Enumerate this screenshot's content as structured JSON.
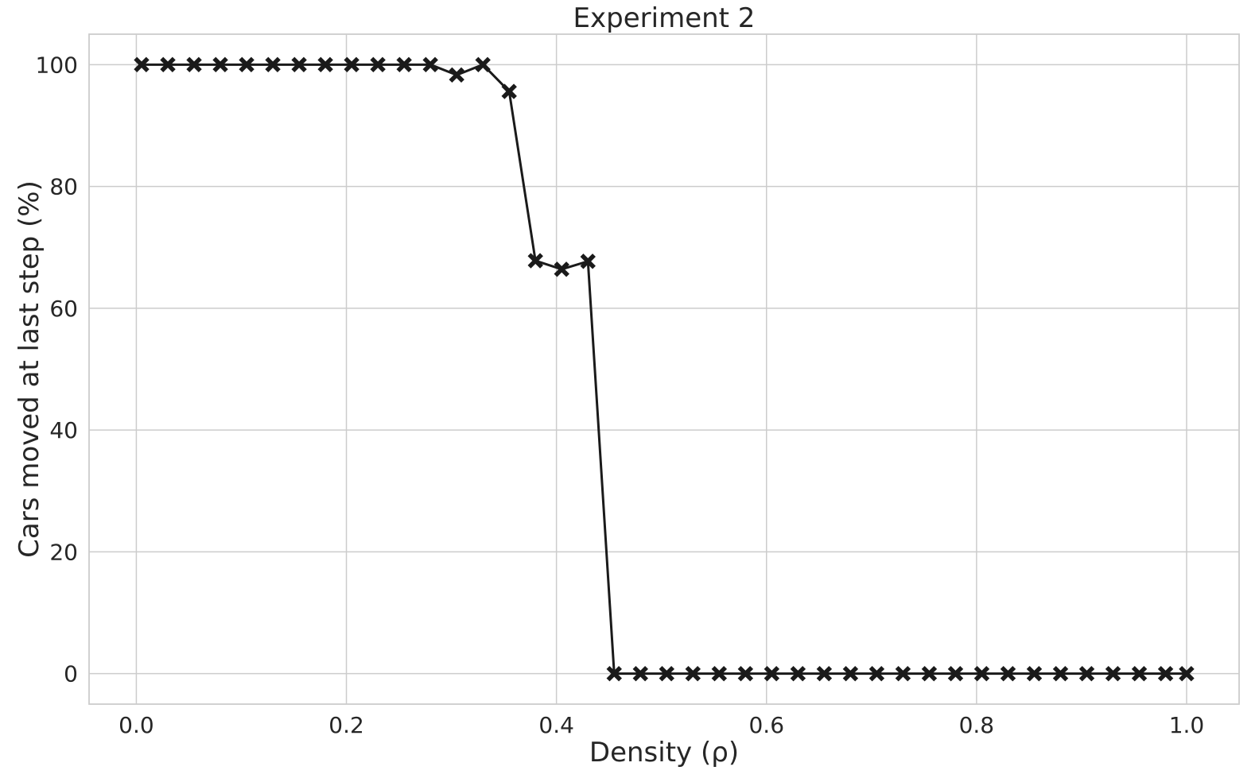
{
  "chart_data": {
    "type": "line",
    "title": "Experiment 2",
    "xlabel": "Density (ρ)",
    "ylabel": "Cars moved at last step (%)",
    "xlim": [
      -0.045,
      1.05
    ],
    "ylim": [
      -5,
      105
    ],
    "x_ticks": [
      0.0,
      0.2,
      0.4,
      0.6,
      0.8,
      1.0
    ],
    "x_tick_labels": [
      "0.0",
      "0.2",
      "0.4",
      "0.6",
      "0.8",
      "1.0"
    ],
    "y_ticks": [
      0,
      20,
      40,
      60,
      80,
      100
    ],
    "y_tick_labels": [
      "0",
      "20",
      "40",
      "60",
      "80",
      "100"
    ],
    "grid": true,
    "line_color": "#1a1a1a",
    "marker": "X",
    "series": [
      {
        "x": [
          0.005,
          0.03,
          0.055,
          0.08,
          0.105,
          0.13,
          0.155,
          0.18,
          0.205,
          0.23,
          0.255,
          0.28,
          0.305,
          0.33,
          0.355,
          0.38,
          0.405,
          0.43,
          0.455,
          0.48,
          0.505,
          0.53,
          0.555,
          0.58,
          0.605,
          0.63,
          0.655,
          0.68,
          0.705,
          0.73,
          0.755,
          0.78,
          0.805,
          0.83,
          0.855,
          0.88,
          0.905,
          0.93,
          0.955,
          0.98,
          1.0
        ],
        "values": [
          100,
          100,
          100,
          100,
          100,
          100,
          100,
          100,
          100,
          100,
          100,
          100,
          98.3,
          100,
          95.6,
          67.8,
          66.4,
          67.7,
          0,
          0,
          0,
          0,
          0,
          0,
          0,
          0,
          0,
          0,
          0,
          0,
          0,
          0,
          0,
          0,
          0,
          0,
          0,
          0,
          0,
          0,
          0
        ]
      }
    ]
  }
}
